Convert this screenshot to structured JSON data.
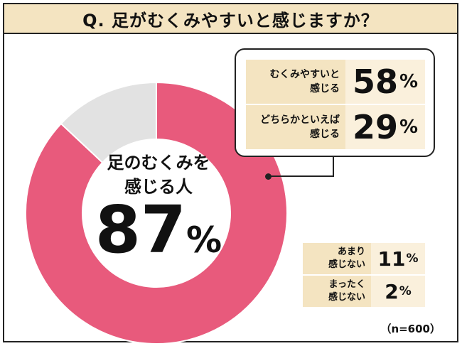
{
  "title": "Q. 足がむくみやすいと感じますか？",
  "center": {
    "label_line1": "足のむくみを",
    "label_line2": "感じる人",
    "value": "87",
    "unit": "%"
  },
  "sample_size": "（n=600）",
  "colors": {
    "feel": "#e85a7c",
    "not_feel": "#e2e2e2",
    "title_bg": "#f4e4c1",
    "label_bg": "#f4e4c1",
    "value_bg": "#faf0dc"
  },
  "chart_data": {
    "type": "pie",
    "variant": "donut",
    "title": "Q. 足がむくみやすいと感じますか？",
    "slices": [
      {
        "label_line1": "むくみやすいと",
        "label_line2": "感じる",
        "value": 58,
        "value_text": "58",
        "unit": "%"
      },
      {
        "label_line1": "どちらかといえば",
        "label_line2": "感じる",
        "value": 29,
        "value_text": "29",
        "unit": "%"
      },
      {
        "label_line1": "あまり",
        "label_line2": "感じない",
        "value": 11,
        "value_text": "11",
        "unit": "%"
      },
      {
        "label_line1": "まったく",
        "label_line2": "感じない",
        "value": 2,
        "value_text": "2",
        "unit": "%"
      }
    ],
    "groups": [
      {
        "name": "feel",
        "value": 87
      },
      {
        "name": "not_feel",
        "value": 13
      }
    ],
    "n": 600
  }
}
